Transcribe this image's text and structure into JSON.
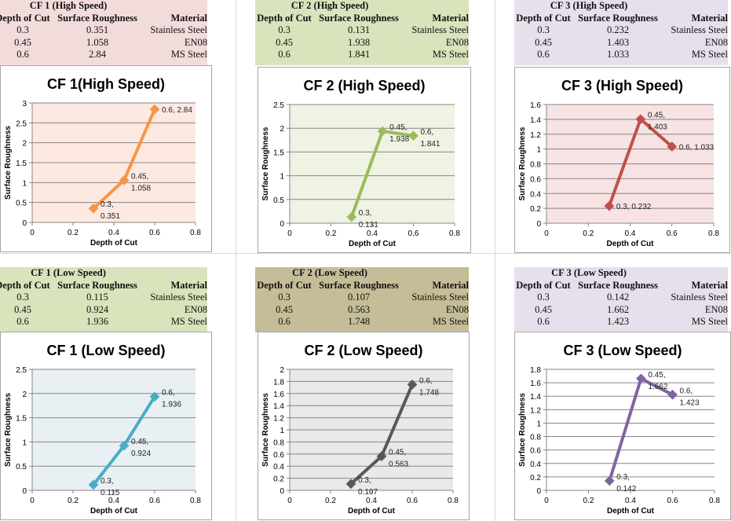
{
  "tables": [
    {
      "title": "CF 1 (High Speed)",
      "bg": "#f2dcdb",
      "headers": [
        "Depth of Cut",
        "Surface Roughness",
        "Material"
      ],
      "rows": [
        [
          "0.3",
          "0.351",
          "Stainless Steel"
        ],
        [
          "0.45",
          "1.058",
          "EN08"
        ],
        [
          "0.6",
          "2.84",
          "MS Steel"
        ]
      ]
    },
    {
      "title": "CF 2 (High Speed)",
      "bg": "#d7e4bc",
      "headers": [
        "Depth of Cut",
        "Surface Roughness",
        "Material"
      ],
      "rows": [
        [
          "0.3",
          "0.131",
          "Stainless Steel"
        ],
        [
          "0.45",
          "1.938",
          "EN08"
        ],
        [
          "0.6",
          "1.841",
          "MS Steel"
        ]
      ]
    },
    {
      "title": "CF 3 (High Speed)",
      "bg": "#e5e0ec",
      "headers": [
        "Depth of Cut",
        "Surface Roughness",
        "Material"
      ],
      "rows": [
        [
          "0.3",
          "0.232",
          "Stainless Steel"
        ],
        [
          "0.45",
          "1.403",
          "EN08"
        ],
        [
          "0.6",
          "1.033",
          "MS Steel"
        ]
      ]
    },
    {
      "title": "CF 1 (Low Speed)",
      "bg": "#d7e4bc",
      "headers": [
        "Depth of Cut",
        "Surface Roughness",
        "Material"
      ],
      "rows": [
        [
          "0.3",
          "0.115",
          "Stainless Steel"
        ],
        [
          "0.45",
          "0.924",
          "EN08"
        ],
        [
          "0.6",
          "1.936",
          "MS Steel"
        ]
      ]
    },
    {
      "title": "CF 2 (Low Speed)",
      "bg": "#c4bd97",
      "headers": [
        "Depth of Cut",
        "Surface Roughness",
        "Material"
      ],
      "rows": [
        [
          "0.3",
          "0.107",
          "Stainless Steel"
        ],
        [
          "0.45",
          "0.563",
          "EN08"
        ],
        [
          "0.6",
          "1.748",
          "MS Steel"
        ]
      ]
    },
    {
      "title": "CF 3 (Low Speed)",
      "bg": "#e5e0ec",
      "headers": [
        "Depth of Cut",
        "Surface Roughness",
        "Material"
      ],
      "rows": [
        [
          "0.3",
          "0.142",
          "Stainless Steel"
        ],
        [
          "0.45",
          "1.662",
          "EN08"
        ],
        [
          "0.6",
          "1.423",
          "MS Steel"
        ]
      ]
    }
  ],
  "chart_data": [
    {
      "type": "line",
      "title": "CF 1(High Speed)",
      "xlabel": "Depth of Cut",
      "ylabel": "Surface Roughness",
      "x": [
        0.3,
        0.45,
        0.6
      ],
      "y": [
        0.351,
        1.058,
        2.84
      ],
      "data_labels": [
        [
          "0.3,",
          "0.351"
        ],
        [
          "0.45,",
          "1.058"
        ],
        [
          "0.6, 2.84"
        ]
      ],
      "xlim": [
        0,
        0.8
      ],
      "ylim": [
        0,
        3
      ],
      "xticks": [
        "0",
        "0.2",
        "0.4",
        "0.6",
        "0.8"
      ],
      "yticks": [
        "0",
        "0.5",
        "1",
        "1.5",
        "2",
        "2.5",
        "3"
      ],
      "grid": true,
      "color": "#f79646",
      "plot_bg": "#fde9e1"
    },
    {
      "type": "line",
      "title": "CF 2 (High Speed)",
      "xlabel": "Depth of Cut",
      "ylabel": "Surface Roughness",
      "x": [
        0.3,
        0.45,
        0.6
      ],
      "y": [
        0.131,
        1.938,
        1.841
      ],
      "data_labels": [
        [
          "0.3,",
          "0.131"
        ],
        [
          "0.45,",
          "1.938"
        ],
        [
          "0.6,",
          "1.841"
        ]
      ],
      "xlim": [
        0,
        0.8
      ],
      "ylim": [
        0,
        2.5
      ],
      "xticks": [
        "0",
        "0.2",
        "0.4",
        "0.6",
        "0.8"
      ],
      "yticks": [
        "0",
        "0.5",
        "1",
        "1.5",
        "2",
        "2.5"
      ],
      "grid": true,
      "color": "#9bbb59",
      "plot_bg": "#eef3e3"
    },
    {
      "type": "line",
      "title": "CF 3 (High Speed)",
      "xlabel": "Depth of Cut",
      "ylabel": "Surface Roughness",
      "x": [
        0.3,
        0.45,
        0.6
      ],
      "y": [
        0.232,
        1.403,
        1.033
      ],
      "data_labels": [
        [
          "0.3, 0.232"
        ],
        [
          "0.45,",
          "1.403"
        ],
        [
          "0.6, 1.033"
        ]
      ],
      "xlim": [
        0,
        0.8
      ],
      "ylim": [
        0,
        1.6
      ],
      "xticks": [
        "0",
        "0.2",
        "0.4",
        "0.6",
        "0.8"
      ],
      "yticks": [
        "0",
        "0.2",
        "0.4",
        "0.6",
        "0.8",
        "1",
        "1.2",
        "1.4",
        "1.6"
      ],
      "grid": true,
      "color": "#c0504d",
      "plot_bg": "#f7e3e3"
    },
    {
      "type": "line",
      "title": "CF 1 (Low Speed)",
      "xlabel": "Depth of Cut",
      "ylabel": "Surface Roughness",
      "x": [
        0.3,
        0.45,
        0.6
      ],
      "y": [
        0.115,
        0.924,
        1.936
      ],
      "data_labels": [
        [
          "0.3,",
          "0.115"
        ],
        [
          "0.45,",
          "0.924"
        ],
        [
          "0.6,",
          "1.936"
        ]
      ],
      "xlim": [
        0,
        0.8
      ],
      "ylim": [
        0,
        2.5
      ],
      "xticks": [
        "0",
        "0.2",
        "0.4",
        "0.6",
        "0.8"
      ],
      "yticks": [
        "0",
        "0.5",
        "1",
        "1.5",
        "2",
        "2.5"
      ],
      "grid": true,
      "color": "#4bacc6",
      "plot_bg": "#e8f0f4"
    },
    {
      "type": "line",
      "title": "CF 2 (Low Speed)",
      "xlabel": "Depth of Cut",
      "ylabel": "Surface Roughness",
      "x": [
        0.3,
        0.45,
        0.6
      ],
      "y": [
        0.107,
        0.563,
        1.748
      ],
      "data_labels": [
        [
          "0.3,",
          "0.107"
        ],
        [
          "0.45,",
          "0.563"
        ],
        [
          "0.6,",
          "1.748"
        ]
      ],
      "xlim": [
        0,
        0.8
      ],
      "ylim": [
        0,
        2
      ],
      "xticks": [
        "0",
        "0.2",
        "0.4",
        "0.6",
        "0.8"
      ],
      "yticks": [
        "0",
        "0.2",
        "0.4",
        "0.6",
        "0.8",
        "1",
        "1.2",
        "1.4",
        "1.6",
        "1.8",
        "2"
      ],
      "grid": true,
      "color": "#595959",
      "plot_bg": "#e9e9e9"
    },
    {
      "type": "line",
      "title": "CF 3 (Low Speed)",
      "xlabel": "Depth of Cut",
      "ylabel": "Surface Roughness",
      "x": [
        0.3,
        0.45,
        0.6
      ],
      "y": [
        0.142,
        1.662,
        1.423
      ],
      "data_labels": [
        [
          "0.3,",
          "0.142"
        ],
        [
          "0.45,",
          "1.662"
        ],
        [
          "0.6,",
          "1.423"
        ]
      ],
      "xlim": [
        0,
        0.8
      ],
      "ylim": [
        0,
        1.8
      ],
      "xticks": [
        "0",
        "0.2",
        "0.4",
        "0.6",
        "0.8"
      ],
      "yticks": [
        "0",
        "0.2",
        "0.4",
        "0.6",
        "0.8",
        "1",
        "1.2",
        "1.4",
        "1.6",
        "1.8"
      ],
      "grid": true,
      "color": "#8064a2",
      "plot_bg": "#ffffff"
    }
  ]
}
